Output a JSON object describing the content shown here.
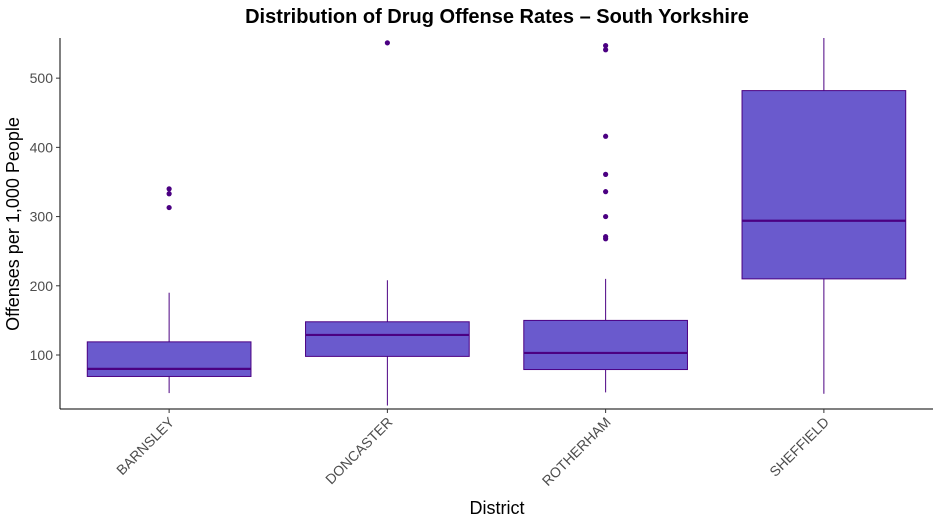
{
  "chart_data": {
    "type": "boxplot",
    "title": "Distribution of Drug Offense Rates – South Yorkshire",
    "xlabel": "District",
    "ylabel": "Offenses per 1,000 People",
    "ylim": [
      22,
      558
    ],
    "yticks": [
      100,
      200,
      300,
      400,
      500
    ],
    "grid": false,
    "legend": "none",
    "colors": {
      "box_fill": "#6a5acd",
      "box_stroke": "#4b0082",
      "median": "#4b0082",
      "outlier": "#4b0082"
    },
    "categories": [
      "BARNSLEY",
      "DONCASTER",
      "ROTHERHAM",
      "SHEFFIELD"
    ],
    "boxes": [
      {
        "category": "BARNSLEY",
        "whisker_low": 45,
        "q1": 69,
        "median": 80,
        "q3": 119,
        "whisker_high": 190,
        "outliers": [
          313,
          333,
          340
        ]
      },
      {
        "category": "DONCASTER",
        "whisker_low": 27,
        "q1": 98,
        "median": 129,
        "q3": 148,
        "whisker_high": 208,
        "outliers": [
          551
        ]
      },
      {
        "category": "ROTHERHAM",
        "whisker_low": 46,
        "q1": 79,
        "median": 103,
        "q3": 150,
        "whisker_high": 210,
        "outliers": [
          268,
          271,
          300,
          336,
          361,
          416,
          541,
          547
        ]
      },
      {
        "category": "SHEFFIELD",
        "whisker_low": 44,
        "q1": 210,
        "median": 294,
        "q3": 482,
        "whisker_high": 558,
        "outliers": []
      }
    ]
  }
}
